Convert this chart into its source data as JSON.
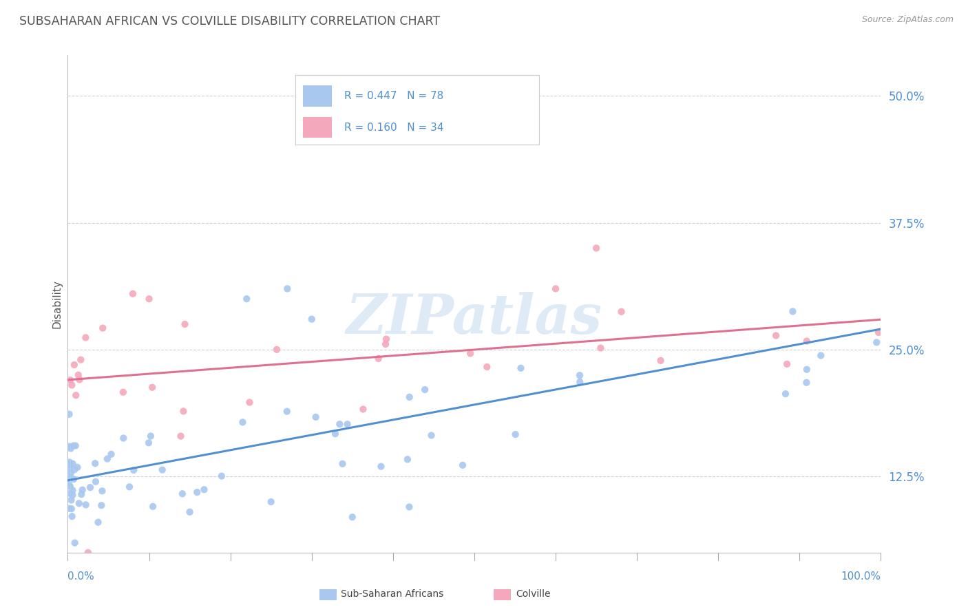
{
  "title": "SUBSAHARAN AFRICAN VS COLVILLE DISABILITY CORRELATION CHART",
  "source_text": "Source: ZipAtlas.com",
  "ylabel": "Disability",
  "blue_R": 0.447,
  "blue_N": 78,
  "pink_R": 0.16,
  "pink_N": 34,
  "blue_color": "#A8C8F0",
  "pink_color": "#F4A8BC",
  "blue_line_color": "#5090D0",
  "pink_line_color": "#E07090",
  "watermark_color": "#C8DCF0",
  "title_color": "#555555",
  "axis_label_color": "#5090D0",
  "background_color": "#FFFFFF",
  "grid_color": "#CCCCCC",
  "ytick_vals": [
    12.5,
    25.0,
    37.5,
    50.0
  ],
  "ytick_labels": [
    "12.5%",
    "25.0%",
    "37.5%",
    "50.0%"
  ],
  "xlim": [
    0,
    100
  ],
  "ylim": [
    5,
    54
  ],
  "figsize": [
    14.06,
    8.92
  ],
  "dpi": 100
}
